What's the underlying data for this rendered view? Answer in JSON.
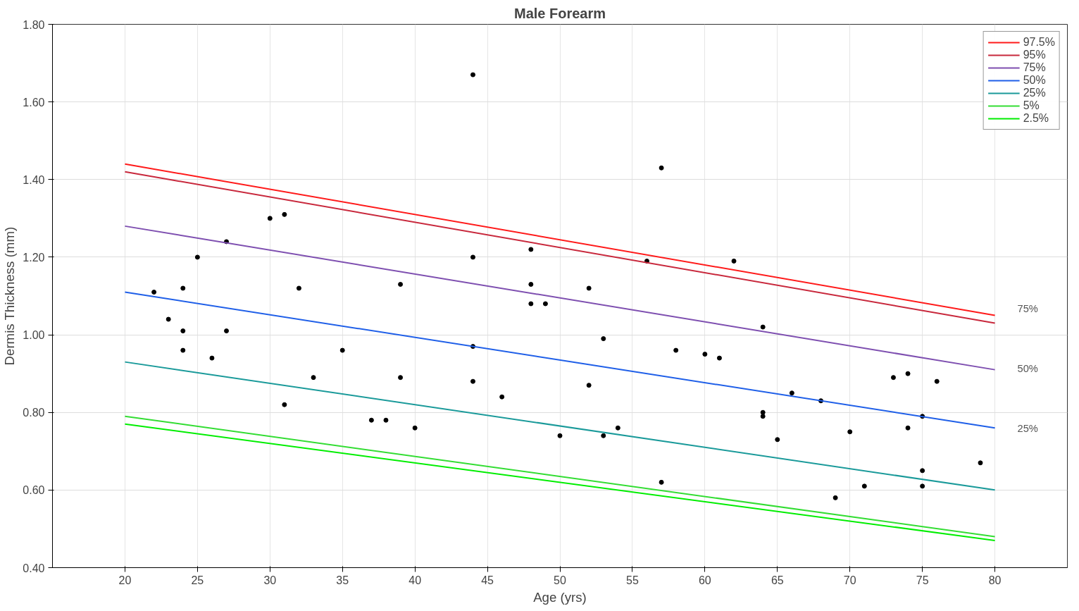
{
  "chart_data": {
    "type": "line",
    "title": "Male Forearm",
    "xlabel": "Age (yrs)",
    "ylabel": "Dermis Thickness (mm)",
    "xlim": [
      15,
      85
    ],
    "xticks": [
      20,
      25,
      30,
      35,
      40,
      45,
      50,
      55,
      60,
      65,
      70,
      75,
      80
    ],
    "ylim": [
      0.4,
      1.8
    ],
    "yticks": [
      {
        "value": 0.4,
        "label": "0.40"
      },
      {
        "value": 0.6,
        "label": "0.60"
      },
      {
        "value": 0.8,
        "label": "0.80"
      },
      {
        "value": 1.0,
        "label": "1.00"
      },
      {
        "value": 1.2,
        "label": "1.20"
      },
      {
        "value": 1.4,
        "label": "1.40"
      },
      {
        "value": 1.6,
        "label": "1.60"
      },
      {
        "value": 1.8,
        "label": "1.80"
      }
    ],
    "grid": true,
    "legend": "top right",
    "marker": "none",
    "line_style": "solid",
    "series": [
      {
        "type": "scatter",
        "color": "#000000",
        "marker": "circle",
        "x": [
          22,
          23,
          24,
          24,
          24,
          25,
          26,
          27,
          27,
          30,
          31,
          31,
          32,
          33,
          35,
          37,
          38,
          39,
          39,
          40,
          44,
          44,
          44,
          44,
          46,
          48,
          48,
          48,
          49,
          50,
          52,
          52,
          53,
          53,
          54,
          56,
          57,
          57,
          58,
          60,
          61,
          62,
          64,
          64,
          64,
          65,
          66,
          68,
          69,
          70,
          71,
          73,
          74,
          74,
          75,
          75,
          75,
          76,
          79
        ],
        "values": [
          1.11,
          1.04,
          1.12,
          1.01,
          0.96,
          1.2,
          0.94,
          1.24,
          1.01,
          1.3,
          1.31,
          0.82,
          1.12,
          0.89,
          0.96,
          0.78,
          0.78,
          1.13,
          0.89,
          0.76,
          1.67,
          1.2,
          0.97,
          0.88,
          0.84,
          1.22,
          1.13,
          1.08,
          1.08,
          0.74,
          1.12,
          0.87,
          0.99,
          0.74,
          0.76,
          1.19,
          1.43,
          0.62,
          0.96,
          0.95,
          0.94,
          1.19,
          1.02,
          0.8,
          0.79,
          0.73,
          0.85,
          0.83,
          0.58,
          0.75,
          0.61,
          0.89,
          0.9,
          0.76,
          0.79,
          0.65,
          0.61,
          0.88,
          0.67
        ]
      },
      {
        "name": "97.5%",
        "color": "#ff1a1a",
        "x": [
          20,
          80
        ],
        "values": [
          1.44,
          1.05
        ]
      },
      {
        "name": "95%",
        "color": "#c8283c",
        "x": [
          20,
          80
        ],
        "values": [
          1.42,
          1.03
        ]
      },
      {
        "name": "75%",
        "color": "#7e4fb0",
        "x": [
          20,
          80
        ],
        "values": [
          1.28,
          0.91
        ]
      },
      {
        "name": "50%",
        "color": "#1f5fe8",
        "x": [
          20,
          80
        ],
        "values": [
          1.11,
          0.76
        ]
      },
      {
        "name": "25%",
        "color": "#1a9a9a",
        "x": [
          20,
          80
        ],
        "values": [
          0.93,
          0.6
        ]
      },
      {
        "name": "5%",
        "color": "#33dd33",
        "x": [
          20,
          80
        ],
        "values": [
          0.79,
          0.48
        ]
      },
      {
        "name": "2.5%",
        "color": "#00ee00",
        "x": [
          20,
          80
        ],
        "values": [
          0.77,
          0.47
        ]
      }
    ],
    "annotations": [
      "75%",
      "50%",
      "25%"
    ]
  }
}
